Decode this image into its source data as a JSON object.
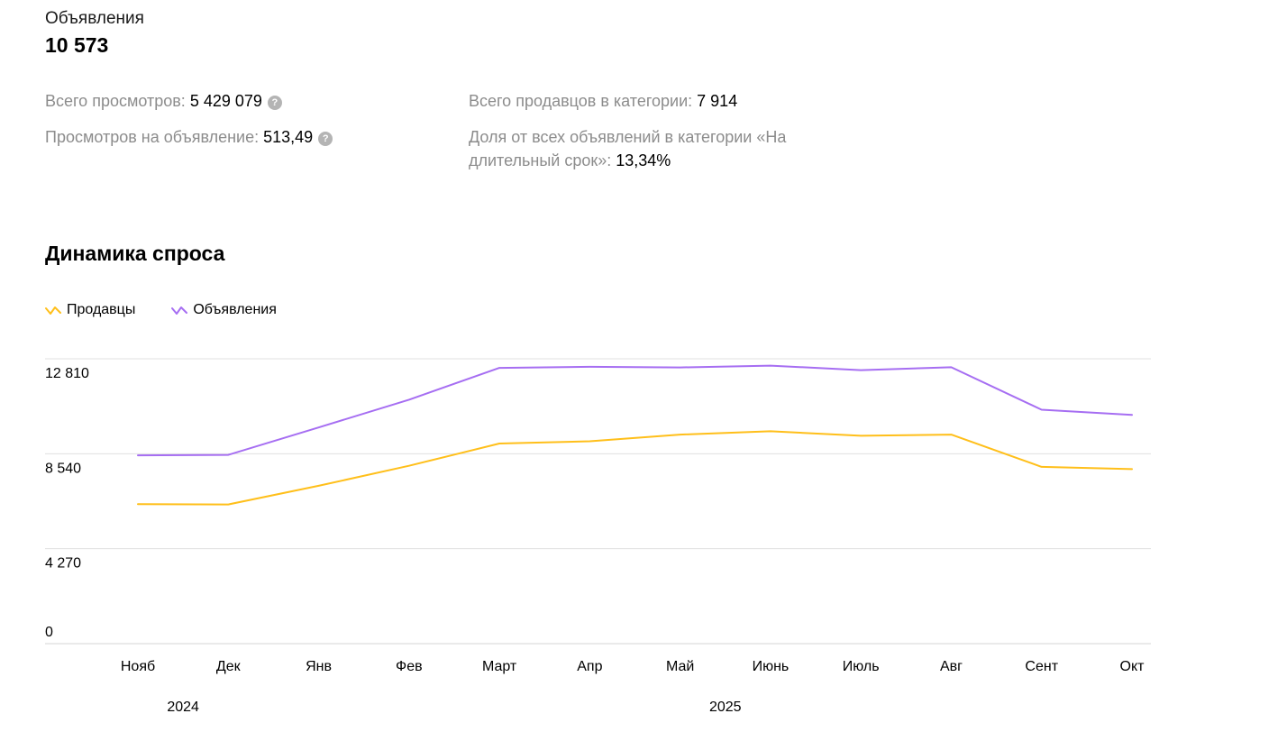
{
  "summary": {
    "label": "Объявления",
    "value": "10 573"
  },
  "stats": {
    "total_views": {
      "label": "Всего просмотров:",
      "value": "5 429 079"
    },
    "views_per_listing": {
      "label": "Просмотров на объявление:",
      "value": "513,49"
    },
    "total_sellers": {
      "label": "Всего продавцов в категории:",
      "value": "7 914"
    },
    "share": {
      "label": "Доля от всех объявлений в категории «На длительный срок»:",
      "value": "13,34%"
    },
    "help_symbol": "?"
  },
  "section_title": "Динамика спроса",
  "colors": {
    "sellers": "#ffbf1a",
    "listings": "#a66ef2",
    "grid": "#e0e0e0"
  },
  "chart_data": {
    "type": "line",
    "title": "Динамика спроса",
    "categories": [
      "Нояб",
      "Дек",
      "Янв",
      "Фев",
      "Март",
      "Апр",
      "Май",
      "Июнь",
      "Июль",
      "Авг",
      "Сент",
      "Окт"
    ],
    "year_labels": [
      {
        "label": "2024",
        "from": 0,
        "to": 1
      },
      {
        "label": "2025",
        "from": 2,
        "to": 11
      }
    ],
    "y_ticks": [
      {
        "value": 0,
        "label": "0"
      },
      {
        "value": 4270,
        "label": "4 270"
      },
      {
        "value": 8540,
        "label": "8 540"
      },
      {
        "value": 12810,
        "label": "12 810"
      }
    ],
    "ylim": [
      0,
      12810
    ],
    "grid": true,
    "legend_position": "top-left",
    "series": [
      {
        "name": "Продавцы",
        "color": "#ffbf1a",
        "values": [
          6270,
          6260,
          7100,
          8000,
          9000,
          9100,
          9400,
          9550,
          9350,
          9400,
          7950,
          7850
        ]
      },
      {
        "name": "Объявления",
        "color": "#a66ef2",
        "values": [
          8470,
          8490,
          9720,
          10970,
          12400,
          12450,
          12420,
          12500,
          12300,
          12430,
          10520,
          10290
        ]
      }
    ]
  }
}
